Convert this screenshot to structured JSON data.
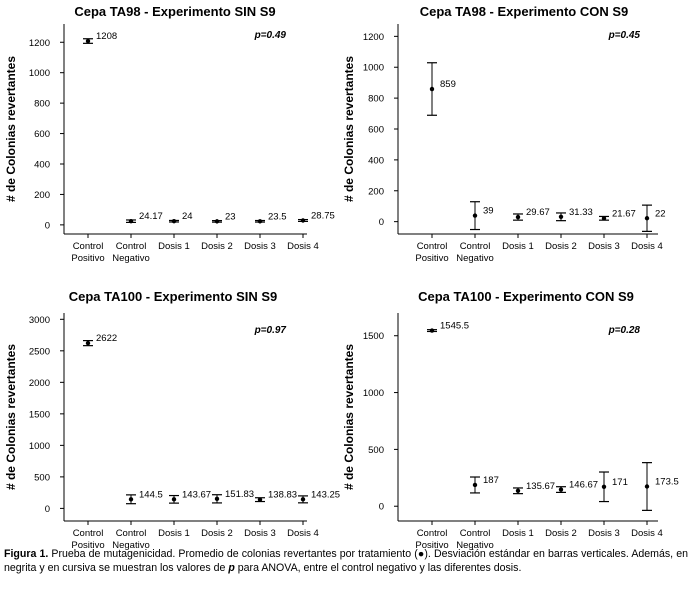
{
  "chart_data": [
    {
      "type": "scatter",
      "title": "Cepa TA98 - Experimento SIN S9",
      "ylabel": "# de Colonias revertantes",
      "categories": [
        "Control Positivo",
        "Control Negativo",
        "Dosis 1",
        "Dosis 2",
        "Dosis 3",
        "Dosis 4"
      ],
      "values": [
        1208,
        24.17,
        24,
        23,
        23.5,
        28.75
      ],
      "value_labels": [
        "1208",
        "24.17",
        "24",
        "23",
        "23.5",
        "28.75"
      ],
      "error": [
        15,
        8,
        5,
        5,
        5,
        6
      ],
      "ylim": [
        -60,
        1320
      ],
      "yticks": [
        0,
        200,
        400,
        600,
        800,
        1000,
        1200
      ],
      "annotation": "p=0.49"
    },
    {
      "type": "scatter",
      "title": "Cepa TA98 - Experimento CON S9",
      "ylabel": "# de Colonias revertantes",
      "categories": [
        "Control Positivo",
        "Control Negativo",
        "Dosis 1",
        "Dosis 2",
        "Dosis 3",
        "Dosis 4"
      ],
      "values": [
        859,
        39,
        29.67,
        31.33,
        21.67,
        22
      ],
      "value_labels": [
        "859",
        "39",
        "29.67",
        "31.33",
        "21.67",
        "22"
      ],
      "error": [
        170,
        90,
        20,
        25,
        12,
        85
      ],
      "ylim": [
        -80,
        1280
      ],
      "yticks": [
        0,
        200,
        400,
        600,
        800,
        1000,
        1200
      ],
      "annotation": "p=0.45"
    },
    {
      "type": "scatter",
      "title": "Cepa TA100 - Experimento SIN S9",
      "ylabel": "# de Colonias revertantes",
      "categories": [
        "Control Positivo",
        "Control Negativo",
        "Dosis 1",
        "Dosis 2",
        "Dosis 3",
        "Dosis 4"
      ],
      "values": [
        2622,
        144.5,
        143.67,
        151.83,
        138.83,
        143.25
      ],
      "value_labels": [
        "2622",
        "144.5",
        "143.67",
        "151.83",
        "138.83",
        "143.25"
      ],
      "error": [
        40,
        70,
        60,
        65,
        30,
        55
      ],
      "ylim": [
        -200,
        3100
      ],
      "yticks": [
        0,
        500,
        1000,
        1500,
        2000,
        2500,
        3000
      ],
      "annotation": "p=0.97"
    },
    {
      "type": "scatter",
      "title": "Cepa TA100 - Experimento CON S9",
      "ylabel": "# de Colonias revertantes",
      "categories": [
        "Control Positivo",
        "Control Negativo",
        "Dosis 1",
        "Dosis 2",
        "Dosis 3",
        "Dosis 4"
      ],
      "values": [
        1545.5,
        187,
        135.67,
        146.67,
        171,
        173.5
      ],
      "value_labels": [
        "1545.5",
        "187",
        "135.67",
        "146.67",
        "171",
        "173.5"
      ],
      "error": [
        8,
        70,
        25,
        25,
        130,
        210
      ],
      "ylim": [
        -130,
        1700
      ],
      "yticks": [
        0,
        500,
        1000,
        1500
      ],
      "annotation": "p=0.28"
    }
  ],
  "caption": {
    "label": "Figura 1.",
    "text_1": " Prueba de mutagenicidad. Promedio de colonias revertantes por tratamiento (●). Desviación estándar en barras verticales. Además, en negrita y en cursiva se muestran los valores de ",
    "p_symbol": "p",
    "text_2": " para ANOVA, entre el control negativo y las diferentes dosis."
  }
}
